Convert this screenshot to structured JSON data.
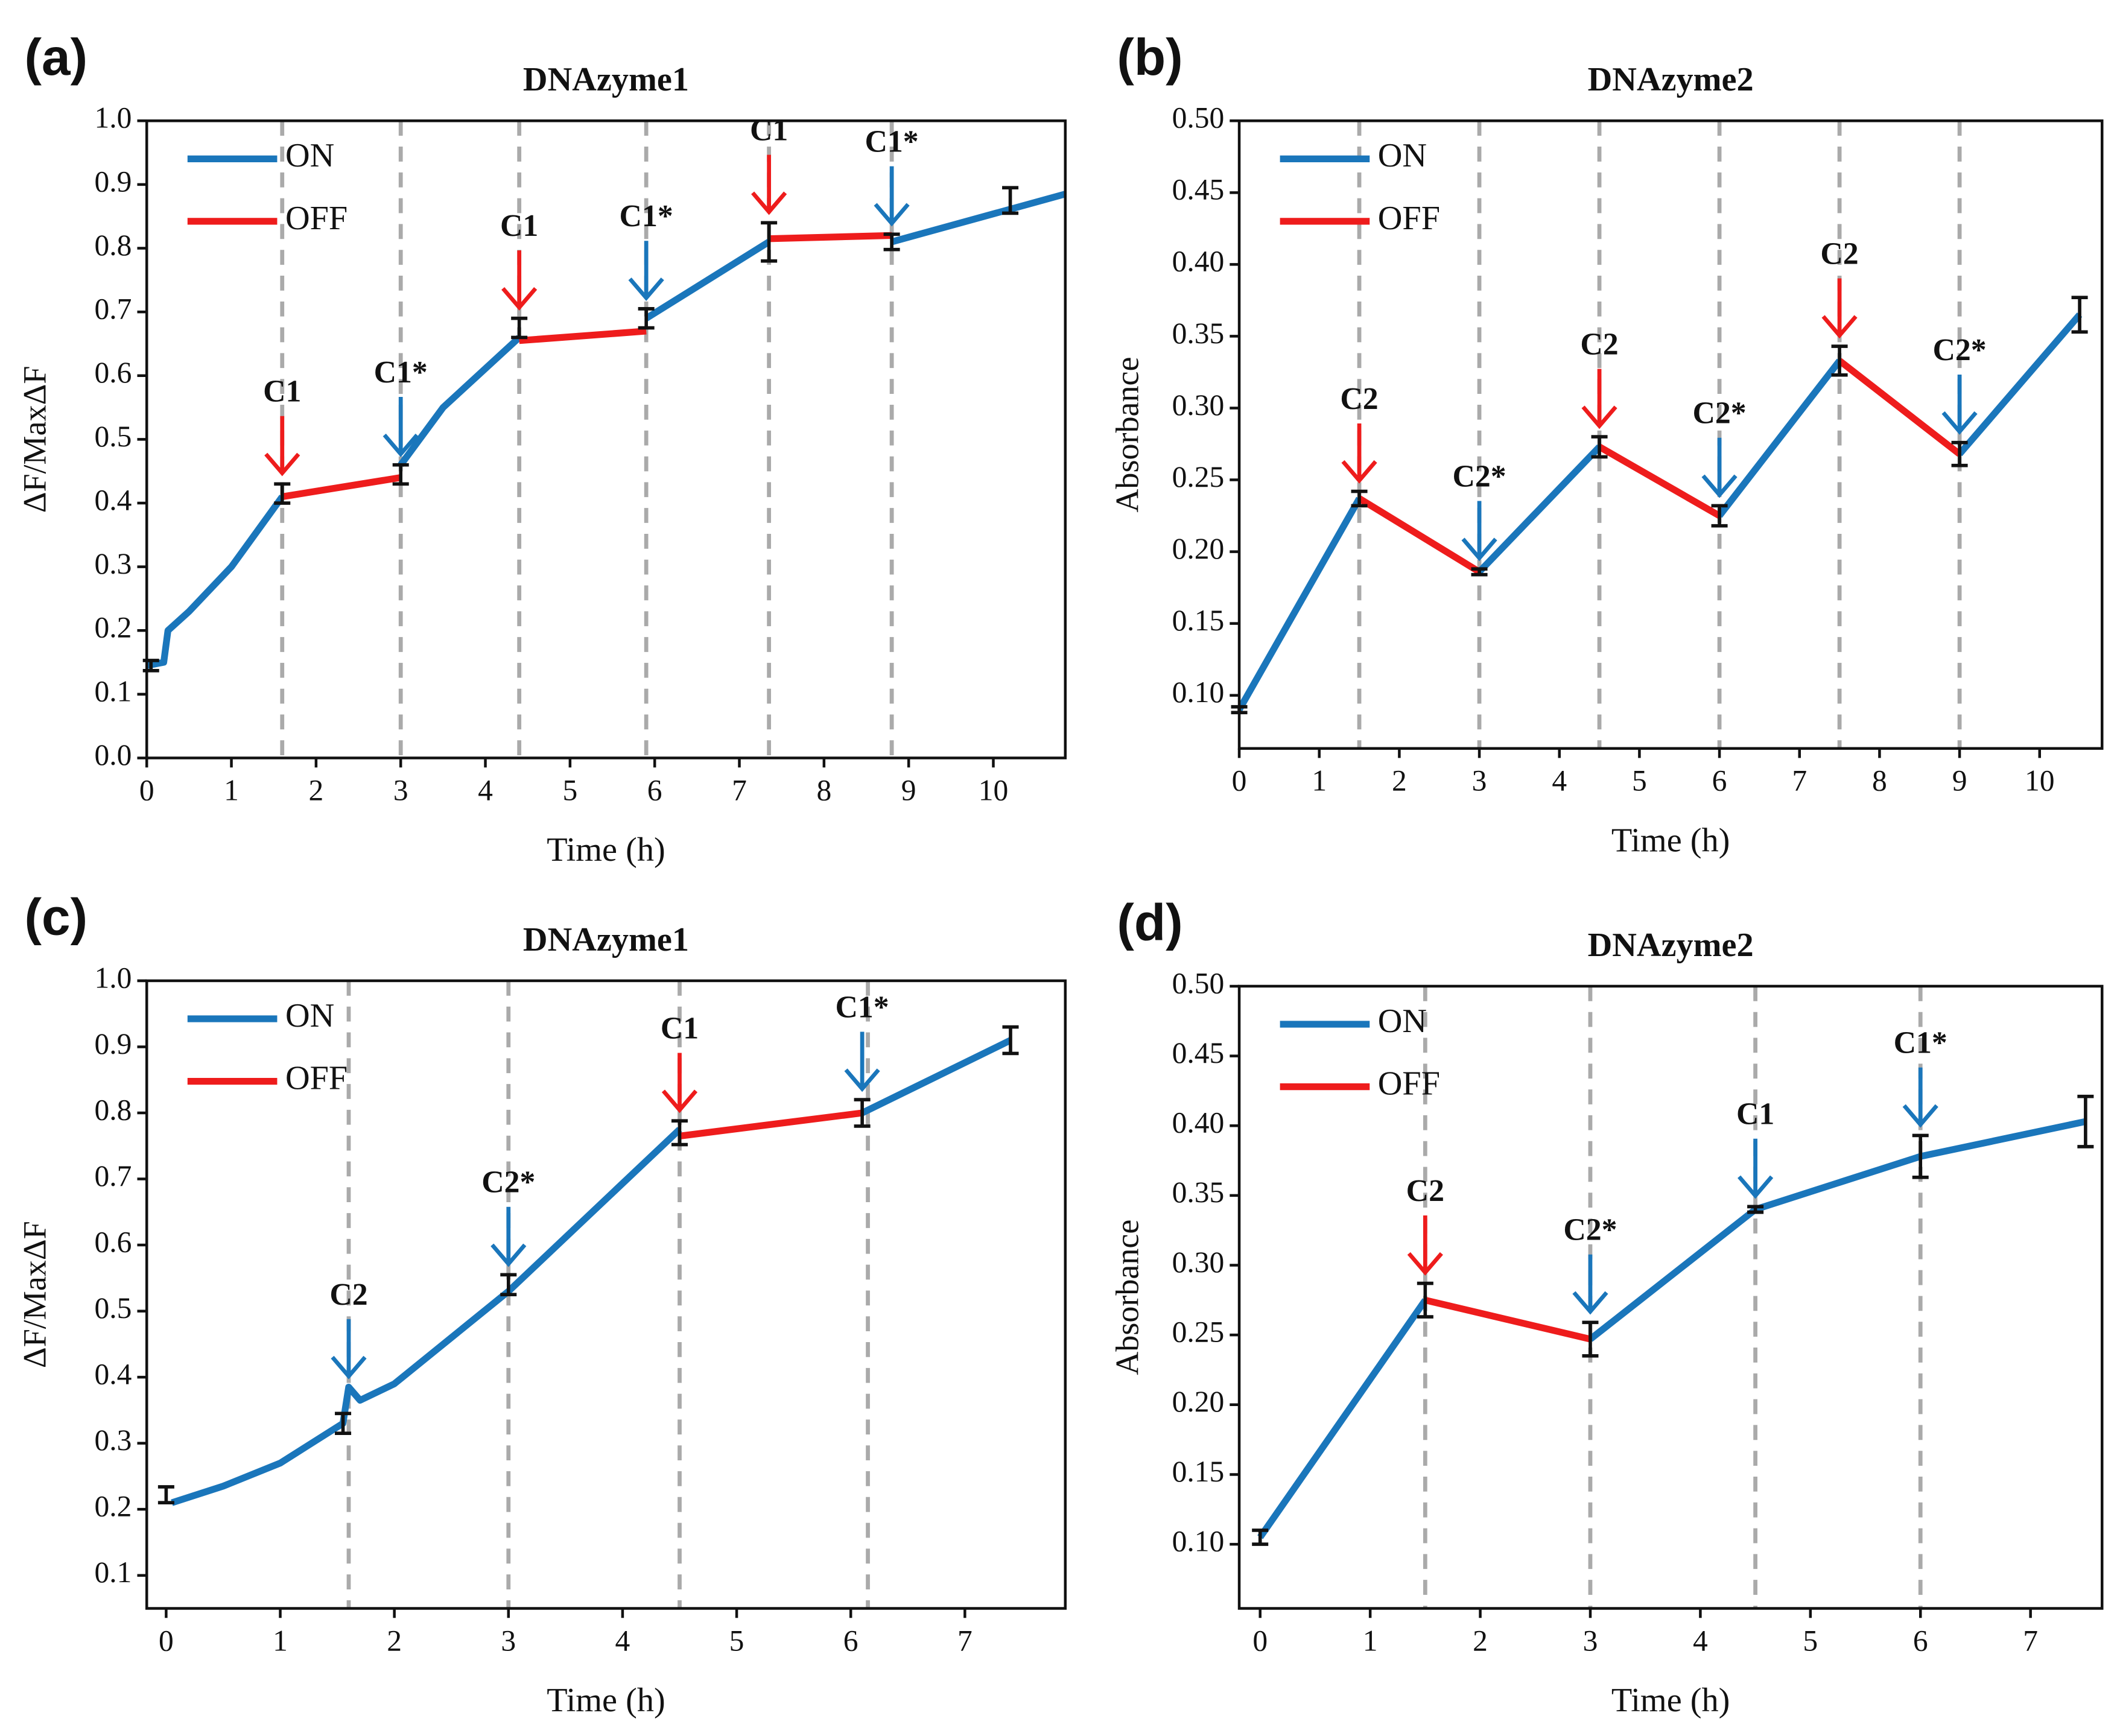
{
  "chart_data": [
    {
      "type": "line",
      "panel": "(a)",
      "title": "DNAzyme1",
      "xlabel": "Time (h)",
      "ylabel": "ΔF/MaxΔF",
      "xlim": [
        0,
        10.85
      ],
      "ylim": [
        0,
        1.0
      ],
      "xticks": [
        0,
        1,
        2,
        3,
        4,
        5,
        6,
        7,
        8,
        9,
        10
      ],
      "yticks": [
        {
          "value": 0,
          "label": "0.0"
        },
        0.1,
        0.2,
        0.3,
        0.4,
        0.5,
        0.6,
        0.7,
        0.8,
        0.9,
        {
          "value": 1,
          "label": "1.0"
        }
      ],
      "series": [
        {
          "name": "ON",
          "color": "#1a76bb",
          "x": [
            0,
            0.2,
            0.25,
            0.5,
            1.0,
            1.6,
            null,
            3,
            3.5,
            4.4,
            null,
            5.9,
            7.35,
            null,
            8.8,
            10.85
          ],
          "values": [
            0.145,
            0.15,
            0.2,
            0.23,
            0.3,
            0.41,
            null,
            0.46,
            0.55,
            0.66,
            null,
            0.69,
            0.81,
            null,
            0.81,
            0.885
          ]
        },
        {
          "name": "OFF",
          "color": "#ee1c1c",
          "x": [
            1.6,
            3,
            null,
            4.4,
            5.9,
            null,
            7.35,
            8.8
          ],
          "values": [
            0.41,
            0.44,
            null,
            0.655,
            0.67,
            null,
            0.815,
            0.82
          ]
        }
      ],
      "error_bars": {
        "x": [
          0.05,
          1.6,
          3,
          4.4,
          5.9,
          7.35,
          8.8,
          10.2
        ],
        "values": [
          0.145,
          0.415,
          0.445,
          0.675,
          0.69,
          0.81,
          0.81,
          0.875
        ],
        "errors": [
          0.008,
          0.015,
          0.015,
          0.015,
          0.015,
          0.03,
          0.012,
          0.02
        ]
      },
      "vlines": [
        1.6,
        3,
        4.4,
        5.9,
        7.35,
        8.8
      ],
      "annotations": [
        {
          "x": 1.6,
          "label": "C1",
          "color": "#ee1c1c"
        },
        {
          "x": 3,
          "label": "C1*",
          "color": "#1a76bb"
        },
        {
          "x": 4.4,
          "label": "C1",
          "color": "#ee1c1c"
        },
        {
          "x": 5.9,
          "label": "C1*",
          "color": "#1a76bb"
        },
        {
          "x": 7.35,
          "label": "C1",
          "color": "#ee1c1c"
        },
        {
          "x": 8.8,
          "label": "C1*",
          "color": "#1a76bb"
        }
      ]
    },
    {
      "type": "line",
      "panel": "(b)",
      "title": "DNAzyme2",
      "xlabel": "Time (h)",
      "ylabel": "Absorbance",
      "xlim": [
        0,
        10.78
      ],
      "ylim": [
        0.063,
        0.5
      ],
      "xticks": [
        0,
        1,
        2,
        3,
        4,
        5,
        6,
        7,
        8,
        9,
        10
      ],
      "yticks": [
        {
          "value": 0.1,
          "label": "0.10"
        },
        0.15,
        {
          "value": 0.2,
          "label": "0.20"
        },
        0.25,
        {
          "value": 0.3,
          "label": "0.30"
        },
        0.35,
        {
          "value": 0.4,
          "label": "0.40"
        },
        0.45,
        {
          "value": 0.5,
          "label": "0.50"
        }
      ],
      "series": [
        {
          "name": "ON",
          "color": "#1a76bb",
          "x": [
            0,
            1.5,
            null,
            3,
            4.5,
            null,
            6,
            7.5,
            null,
            9,
            10.5
          ],
          "values": [
            0.09,
            0.237,
            null,
            0.186,
            0.273,
            null,
            0.225,
            0.333,
            null,
            0.268,
            0.365
          ]
        },
        {
          "name": "OFF",
          "color": "#ee1c1c",
          "x": [
            1.5,
            3,
            null,
            4.5,
            6,
            null,
            7.5,
            9
          ],
          "values": [
            0.237,
            0.186,
            null,
            0.273,
            0.225,
            null,
            0.333,
            0.268
          ]
        }
      ],
      "error_bars": {
        "x": [
          0,
          1.5,
          3,
          4.5,
          6,
          7.5,
          9,
          10.5
        ],
        "values": [
          0.09,
          0.237,
          0.186,
          0.273,
          0.225,
          0.333,
          0.268,
          0.365
        ],
        "errors": [
          0.002,
          0.005,
          0.002,
          0.007,
          0.007,
          0.01,
          0.008,
          0.012
        ]
      },
      "vlines": [
        1.5,
        3,
        4.5,
        6,
        7.5,
        9
      ],
      "annotations": [
        {
          "x": 1.5,
          "label": "C2",
          "color": "#ee1c1c"
        },
        {
          "x": 3,
          "label": "C2*",
          "color": "#1a76bb"
        },
        {
          "x": 4.5,
          "label": "C2",
          "color": "#ee1c1c"
        },
        {
          "x": 6,
          "label": "C2*",
          "color": "#1a76bb"
        },
        {
          "x": 7.5,
          "label": "C2",
          "color": "#ee1c1c"
        },
        {
          "x": 9,
          "label": "C2*",
          "color": "#1a76bb"
        }
      ]
    },
    {
      "type": "line",
      "panel": "(c)",
      "title": "DNAzyme1",
      "xlabel": "Time (h)",
      "ylabel": "ΔF/MaxΔF",
      "xlim": [
        -0.17,
        7.88
      ],
      "ylim": [
        0.05,
        1.0
      ],
      "xticks": [
        0,
        1,
        2,
        3,
        4,
        5,
        6,
        7
      ],
      "yticks": [
        0.1,
        0.2,
        0.3,
        0.4,
        0.5,
        0.6,
        0.7,
        0.8,
        0.9,
        {
          "value": 1,
          "label": "1.0"
        }
      ],
      "series": [
        {
          "name": "ON",
          "color": "#1a76bb",
          "x": [
            0.05,
            0.5,
            1,
            1.55,
            1.6,
            1.7,
            2,
            3,
            4.5,
            null,
            6.1,
            7.4
          ],
          "values": [
            0.21,
            0.235,
            0.27,
            0.33,
            0.385,
            0.365,
            0.39,
            0.53,
            0.775,
            null,
            0.8,
            0.91
          ]
        },
        {
          "name": "OFF",
          "color": "#ee1c1c",
          "x": [
            4.5,
            6.1
          ],
          "values": [
            0.765,
            0.8
          ]
        }
      ],
      "error_bars": {
        "x": [
          0,
          1.55,
          3,
          4.5,
          6.1,
          7.4
        ],
        "values": [
          0.222,
          0.33,
          0.54,
          0.77,
          0.8,
          0.91
        ],
        "errors": [
          0.012,
          0.015,
          0.015,
          0.018,
          0.02,
          0.02
        ]
      },
      "vlines": [
        1.6,
        3,
        4.5,
        6.15
      ],
      "annotations": [
        {
          "x": 1.6,
          "label": "C2",
          "color": "#1a76bb"
        },
        {
          "x": 3,
          "label": "C2*",
          "color": "#1a76bb"
        },
        {
          "x": 4.5,
          "label": "C1",
          "color": "#ee1c1c"
        },
        {
          "x": 6.1,
          "label": "C1*",
          "color": "#1a76bb"
        }
      ]
    },
    {
      "type": "line",
      "panel": "(d)",
      "title": "DNAzyme2",
      "xlabel": "Time (h)",
      "ylabel": "Absorbance",
      "xlim": [
        -0.19,
        7.65
      ],
      "ylim": [
        0.054,
        0.5
      ],
      "xticks": [
        0,
        1,
        2,
        3,
        4,
        5,
        6,
        7
      ],
      "yticks": [
        {
          "value": 0.1,
          "label": "0.10"
        },
        0.15,
        {
          "value": 0.2,
          "label": "0.20"
        },
        0.25,
        {
          "value": 0.3,
          "label": "0.30"
        },
        0.35,
        {
          "value": 0.4,
          "label": "0.40"
        },
        0.45,
        {
          "value": 0.5,
          "label": "0.50"
        }
      ],
      "series": [
        {
          "name": "ON",
          "color": "#1a76bb",
          "x": [
            0,
            1.5,
            null,
            3,
            4.5,
            6,
            7.5
          ],
          "values": [
            0.105,
            0.275,
            null,
            0.247,
            0.34,
            0.378,
            0.403
          ]
        },
        {
          "name": "OFF",
          "color": "#ee1c1c",
          "x": [
            1.5,
            3
          ],
          "values": [
            0.275,
            0.247
          ]
        }
      ],
      "error_bars": {
        "x": [
          0,
          1.5,
          3,
          4.5,
          6,
          7.5
        ],
        "values": [
          0.105,
          0.275,
          0.247,
          0.34,
          0.378,
          0.403
        ],
        "errors": [
          0.005,
          0.012,
          0.012,
          0.002,
          0.015,
          0.018
        ]
      },
      "vlines": [
        1.5,
        3,
        4.5,
        6
      ],
      "annotations": [
        {
          "x": 1.5,
          "label": "C2",
          "color": "#ee1c1c"
        },
        {
          "x": 3,
          "label": "C2*",
          "color": "#1a76bb"
        },
        {
          "x": 4.5,
          "label": "C1",
          "color": "#1a76bb"
        },
        {
          "x": 6,
          "label": "C1*",
          "color": "#1a76bb"
        }
      ]
    }
  ]
}
